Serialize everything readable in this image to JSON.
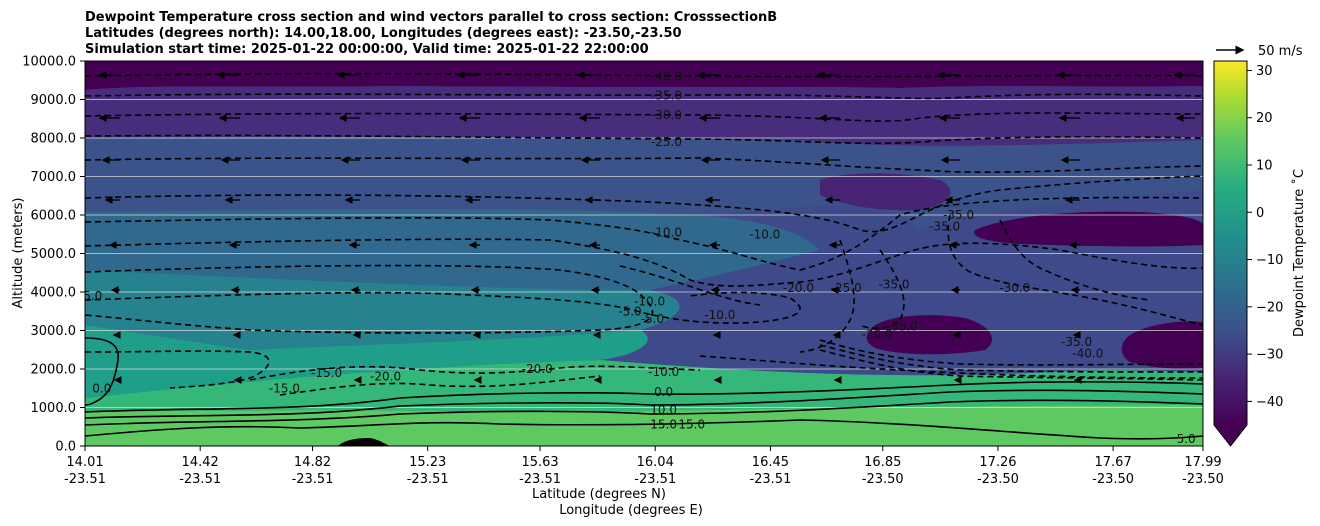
{
  "chart_data": {
    "type": "heatmap",
    "title_lines": [
      "Dewpoint Temperature cross section and wind vectors parallel to cross section: CrosssectionB",
      "Latitudes (degrees north): 14.00,18.00, Longitudes (degrees east): -23.50,-23.50",
      "Simulation start time: 2025-01-22 00:00:00, Valid time: 2025-01-22 22:00:00"
    ],
    "ylabel": "Altitude (meters)",
    "xlabel_lat": "Latitude (degrees N)",
    "xlabel_lon": "Longitude (degrees E)",
    "yticks": [
      "0.0",
      "1000.0",
      "2000.0",
      "3000.0",
      "4000.0",
      "5000.0",
      "6000.0",
      "7000.0",
      "8000.0",
      "9000.0",
      "10000.0"
    ],
    "ylim": [
      0,
      10000
    ],
    "x_ticks": [
      {
        "lat": "14.01",
        "lon": "-23.51"
      },
      {
        "lat": "14.42",
        "lon": "-23.51"
      },
      {
        "lat": "14.82",
        "lon": "-23.51"
      },
      {
        "lat": "15.23",
        "lon": "-23.51"
      },
      {
        "lat": "15.63",
        "lon": "-23.51"
      },
      {
        "lat": "16.04",
        "lon": "-23.51"
      },
      {
        "lat": "16.45",
        "lon": "-23.51"
      },
      {
        "lat": "16.85",
        "lon": "-23.50"
      },
      {
        "lat": "17.26",
        "lon": "-23.50"
      },
      {
        "lat": "17.67",
        "lon": "-23.50"
      },
      {
        "lat": "17.99",
        "lon": "-23.50"
      }
    ],
    "xlim": [
      14.01,
      17.99
    ],
    "grid": "horizontal",
    "colorbar": {
      "label": "Dewpoint Temperature ˚C",
      "ticks": [
        "30",
        "20",
        "10",
        "0",
        "−10",
        "−20",
        "−30",
        "−40"
      ],
      "range": [
        -45,
        32
      ],
      "extend": "min",
      "colormap": "viridis"
    },
    "quiver_key": {
      "label": "50 m/s"
    },
    "contour_labels": [
      {
        "text": "-40.0",
        "lat": 16.08,
        "z": 9600
      },
      {
        "text": "-35.0",
        "lat": 16.08,
        "z": 9100
      },
      {
        "text": "-30.0",
        "lat": 16.08,
        "z": 8600
      },
      {
        "text": "-25.0",
        "lat": 16.08,
        "z": 7900
      },
      {
        "text": "-10.0",
        "lat": 16.08,
        "z": 5550
      },
      {
        "text": "-10.0",
        "lat": 16.43,
        "z": 5500
      },
      {
        "text": "-35.0",
        "lat": 17.07,
        "z": 5700
      },
      {
        "text": "-35.0",
        "lat": 17.12,
        "z": 6000
      },
      {
        "text": "-20.0",
        "lat": 16.55,
        "z": 4100
      },
      {
        "text": "-25.0",
        "lat": 16.72,
        "z": 4100
      },
      {
        "text": "-35.0",
        "lat": 16.89,
        "z": 4200
      },
      {
        "text": "-30.0",
        "lat": 17.32,
        "z": 4100
      },
      {
        "text": "-10.0",
        "lat": 16.02,
        "z": 3750
      },
      {
        "text": "-5.0",
        "lat": 15.95,
        "z": 3500
      },
      {
        "text": "-5.0",
        "lat": 16.03,
        "z": 3300
      },
      {
        "text": "-10.0",
        "lat": 16.27,
        "z": 3400
      },
      {
        "text": "-35.0",
        "lat": 16.92,
        "z": 3100
      },
      {
        "text": "-30.0",
        "lat": 16.83,
        "z": 2900
      },
      {
        "text": "-35.0",
        "lat": 17.54,
        "z": 2700
      },
      {
        "text": "-40.0",
        "lat": 17.58,
        "z": 2400
      },
      {
        "text": "-5.0",
        "lat": 14.03,
        "z": 3900
      },
      {
        "text": "0.0",
        "lat": 14.07,
        "z": 1500
      },
      {
        "text": "-15.0",
        "lat": 14.72,
        "z": 1500
      },
      {
        "text": "-15.0",
        "lat": 14.87,
        "z": 1900
      },
      {
        "text": "-20.0",
        "lat": 15.08,
        "z": 1800
      },
      {
        "text": "-20.0",
        "lat": 15.62,
        "z": 2000
      },
      {
        "text": "-10.0",
        "lat": 16.07,
        "z": 1920
      },
      {
        "text": "0.0",
        "lat": 16.07,
        "z": 1400
      },
      {
        "text": "10.0",
        "lat": 16.07,
        "z": 930
      },
      {
        "text": "15.0",
        "lat": 16.07,
        "z": 560
      },
      {
        "text": "15.0",
        "lat": 16.17,
        "z": 560
      },
      {
        "text": "5.0",
        "lat": 17.93,
        "z": 180
      }
    ]
  }
}
